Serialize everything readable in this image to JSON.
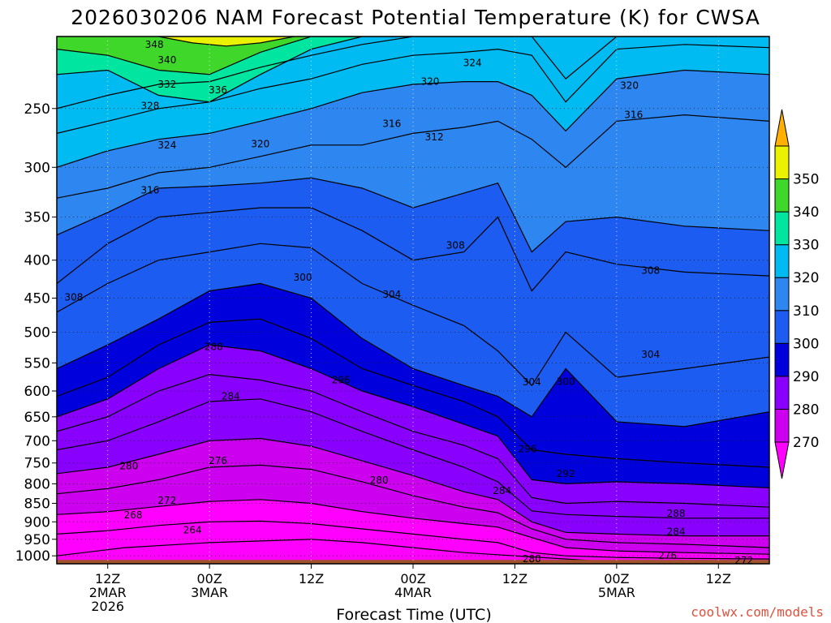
{
  "title": "2026030206 NAM Forecast Potential Temperature (K) for CWSA",
  "credit": "coolwx.com/models",
  "chart_data": {
    "type": "heatmap",
    "title": "2026030206 NAM Forecast Potential Temperature (K) for CWSA",
    "xlabel": "Forecast Time (UTC)",
    "ylabel": "",
    "x_range_hours": [
      6,
      90
    ],
    "y_range_hpa": [
      200,
      1025
    ],
    "y_scale": "log",
    "y_ticks": [
      250,
      300,
      350,
      400,
      450,
      500,
      550,
      600,
      650,
      700,
      750,
      800,
      850,
      900,
      950,
      1000
    ],
    "x_ticks": [
      {
        "hour": 12,
        "lines": [
          "12Z",
          "2MAR",
          "2026"
        ]
      },
      {
        "hour": 24,
        "lines": [
          "00Z",
          "3MAR"
        ]
      },
      {
        "hour": 36,
        "lines": [
          "12Z"
        ]
      },
      {
        "hour": 48,
        "lines": [
          "00Z",
          "4MAR"
        ]
      },
      {
        "hour": 60,
        "lines": [
          "12Z"
        ]
      },
      {
        "hour": 72,
        "lines": [
          "00Z",
          "5MAR"
        ]
      },
      {
        "hour": 84,
        "lines": [
          "12Z"
        ]
      }
    ],
    "grid": true,
    "colorbar": {
      "levels": [
        270,
        280,
        290,
        300,
        310,
        320,
        330,
        340,
        350
      ],
      "labels": [
        "270",
        "280",
        "290",
        "300",
        "310",
        "320",
        "330",
        "340",
        "350"
      ],
      "colors": [
        "#ff00ff",
        "#cc00ee",
        "#8a00ff",
        "#0000dd",
        "#1c5cf0",
        "#2e86f0",
        "#00baf2",
        "#00e5a0",
        "#3fd82a",
        "#eaf200",
        "#ffb000"
      ]
    },
    "contour_interval": 2,
    "series": [
      {
        "theta": 264,
        "hours": [
          6,
          14,
          24,
          30,
          36,
          42,
          48,
          54,
          60,
          66,
          72,
          80,
          90
        ],
        "pressure": [
          1000,
          975,
          960,
          955,
          950,
          960,
          975,
          990,
          1000,
          1010,
          1020,
          1020,
          1020
        ]
      },
      {
        "theta": 268,
        "hours": [
          6,
          12,
          18,
          24,
          30,
          36,
          42,
          48,
          54,
          58,
          62,
          66,
          72,
          80,
          90
        ],
        "pressure": [
          935,
          925,
          910,
          900,
          898,
          905,
          920,
          935,
          950,
          960,
          990,
          1000,
          1005,
          1008,
          1010
        ]
      },
      {
        "theta": 272,
        "hours": [
          6,
          12,
          18,
          24,
          30,
          36,
          42,
          48,
          54,
          58,
          62,
          66,
          72,
          80,
          90
        ],
        "pressure": [
          880,
          872,
          858,
          845,
          840,
          850,
          872,
          890,
          905,
          915,
          945,
          975,
          985,
          990,
          995
        ]
      },
      {
        "theta": 276,
        "hours": [
          6,
          12,
          18,
          24,
          30,
          36,
          42,
          48,
          54,
          58,
          62,
          66,
          72,
          80,
          90
        ],
        "pressure": [
          825,
          812,
          790,
          760,
          755,
          765,
          795,
          830,
          860,
          875,
          920,
          950,
          960,
          965,
          975
        ]
      },
      {
        "theta": 280,
        "hours": [
          6,
          12,
          18,
          24,
          30,
          36,
          42,
          48,
          54,
          58,
          62,
          66,
          72,
          80,
          90
        ],
        "pressure": [
          775,
          760,
          730,
          700,
          695,
          712,
          745,
          780,
          820,
          840,
          900,
          930,
          935,
          940,
          940
        ]
      },
      {
        "theta": 284,
        "hours": [
          6,
          12,
          18,
          24,
          30,
          36,
          42,
          48,
          54,
          58,
          62,
          66,
          72,
          80,
          90
        ],
        "pressure": [
          720,
          700,
          660,
          620,
          615,
          640,
          680,
          720,
          760,
          795,
          870,
          880,
          885,
          890,
          890
        ]
      },
      {
        "theta": 288,
        "hours": [
          6,
          12,
          18,
          24,
          30,
          36,
          42,
          48,
          54,
          58,
          62,
          66,
          72,
          80,
          90
        ],
        "pressure": [
          680,
          650,
          600,
          570,
          580,
          600,
          640,
          680,
          710,
          740,
          835,
          850,
          845,
          850,
          860
        ]
      },
      {
        "theta": 292,
        "hours": [
          6,
          12,
          18,
          24,
          30,
          36,
          42,
          48,
          54,
          58,
          62,
          66,
          72,
          80,
          90
        ],
        "pressure": [
          650,
          615,
          560,
          520,
          530,
          560,
          600,
          630,
          665,
          690,
          790,
          800,
          795,
          800,
          810
        ]
      },
      {
        "theta": 296,
        "hours": [
          6,
          12,
          18,
          24,
          30,
          36,
          42,
          48,
          54,
          58,
          62,
          66,
          72,
          80,
          90
        ],
        "pressure": [
          610,
          575,
          520,
          485,
          480,
          510,
          560,
          590,
          620,
          650,
          720,
          730,
          740,
          750,
          760
        ]
      },
      {
        "theta": 300,
        "hours": [
          6,
          12,
          18,
          24,
          30,
          36,
          42,
          48,
          54,
          58,
          62,
          66,
          72,
          80,
          90
        ],
        "pressure": [
          560,
          520,
          480,
          440,
          430,
          450,
          510,
          560,
          590,
          610,
          650,
          560,
          660,
          670,
          640
        ]
      },
      {
        "theta": 304,
        "hours": [
          6,
          12,
          18,
          24,
          30,
          36,
          42,
          48,
          54,
          58,
          62,
          66,
          72,
          80,
          90
        ],
        "pressure": [
          470,
          430,
          400,
          390,
          380,
          385,
          430,
          460,
          490,
          530,
          590,
          500,
          575,
          560,
          540
        ]
      },
      {
        "theta": 308,
        "hours": [
          6,
          12,
          18,
          24,
          30,
          36,
          42,
          48,
          54,
          58,
          62,
          66,
          72,
          80,
          90
        ],
        "pressure": [
          430,
          380,
          350,
          345,
          340,
          340,
          365,
          400,
          390,
          350,
          440,
          390,
          405,
          415,
          420
        ]
      },
      {
        "theta": 312,
        "hours": [
          6,
          12,
          18,
          24,
          30,
          36,
          42,
          48,
          54,
          58,
          62,
          66,
          72,
          80,
          90
        ],
        "pressure": [
          370,
          345,
          320,
          318,
          315,
          310,
          320,
          340,
          325,
          315,
          390,
          355,
          350,
          360,
          365
        ]
      },
      {
        "theta": 316,
        "hours": [
          6,
          12,
          18,
          24,
          30,
          36,
          42,
          48,
          54,
          58,
          62,
          66,
          72,
          80,
          90
        ],
        "pressure": [
          330,
          320,
          305,
          300,
          290,
          280,
          280,
          270,
          265,
          260,
          275,
          300,
          260,
          255,
          260
        ]
      },
      {
        "theta": 320,
        "hours": [
          6,
          12,
          18,
          24,
          30,
          36,
          42,
          48,
          54,
          58,
          62,
          66,
          72,
          80,
          90
        ],
        "pressure": [
          300,
          285,
          275,
          270,
          260,
          250,
          238,
          232,
          230,
          230,
          240,
          268,
          228,
          222,
          225
        ]
      },
      {
        "theta": 324,
        "hours": [
          6,
          12,
          18,
          24,
          30,
          36,
          42,
          48,
          54,
          58,
          62,
          66,
          72,
          80,
          90
        ],
        "pressure": [
          270,
          260,
          250,
          245,
          235,
          228,
          218,
          212,
          210,
          208,
          212,
          245,
          208,
          205,
          207
        ]
      },
      {
        "theta": 328,
        "hours": [
          6,
          12,
          18,
          24,
          30,
          36,
          42,
          48,
          54,
          58,
          62,
          66,
          72,
          80,
          90
        ],
        "pressure": [
          250,
          240,
          232,
          230,
          220,
          212,
          205,
          200,
          200,
          200,
          200,
          228,
          200,
          200,
          200
        ]
      },
      {
        "theta": 336,
        "hours": [
          6,
          12,
          18,
          24,
          30,
          36,
          42,
          48
        ],
        "pressure": [
          225,
          222,
          240,
          245,
          225,
          208,
          200,
          200
        ]
      },
      {
        "theta": 344,
        "hours": [
          6,
          12,
          18,
          24,
          30,
          36,
          42
        ],
        "pressure": [
          208,
          212,
          222,
          225,
          210,
          200,
          200
        ]
      },
      {
        "theta": 350,
        "hours": [
          18,
          22,
          26,
          30,
          34
        ],
        "pressure": [
          200,
          204,
          206,
          204,
          200
        ]
      }
    ],
    "contour_labels": [
      {
        "text": "348",
        "hour": 17.5,
        "p": 205
      },
      {
        "text": "340",
        "hour": 19,
        "p": 215
      },
      {
        "text": "332",
        "hour": 19,
        "p": 232
      },
      {
        "text": "336",
        "hour": 25,
        "p": 236
      },
      {
        "text": "328",
        "hour": 17,
        "p": 248
      },
      {
        "text": "324",
        "hour": 19,
        "p": 280
      },
      {
        "text": "320",
        "hour": 30,
        "p": 279
      },
      {
        "text": "316",
        "hour": 17,
        "p": 322
      },
      {
        "text": "324",
        "hour": 55,
        "p": 217
      },
      {
        "text": "320",
        "hour": 50,
        "p": 230
      },
      {
        "text": "320",
        "hour": 73.5,
        "p": 233
      },
      {
        "text": "316",
        "hour": 45.5,
        "p": 262
      },
      {
        "text": "312",
        "hour": 50.5,
        "p": 273
      },
      {
        "text": "316",
        "hour": 74,
        "p": 255
      },
      {
        "text": "308",
        "hour": 53,
        "p": 382
      },
      {
        "text": "308",
        "hour": 76,
        "p": 413
      },
      {
        "text": "300",
        "hour": 35,
        "p": 422
      },
      {
        "text": "304",
        "hour": 45.5,
        "p": 445
      },
      {
        "text": "308",
        "hour": 8,
        "p": 449
      },
      {
        "text": "304",
        "hour": 76,
        "p": 536
      },
      {
        "text": "304",
        "hour": 62,
        "p": 584
      },
      {
        "text": "300",
        "hour": 66,
        "p": 583
      },
      {
        "text": "288",
        "hour": 24.5,
        "p": 523
      },
      {
        "text": "284",
        "hour": 26.5,
        "p": 610
      },
      {
        "text": "296",
        "hour": 39.5,
        "p": 580
      },
      {
        "text": "280",
        "hour": 14.5,
        "p": 757
      },
      {
        "text": "276",
        "hour": 25,
        "p": 745
      },
      {
        "text": "280",
        "hour": 44,
        "p": 791
      },
      {
        "text": "284",
        "hour": 58.5,
        "p": 817
      },
      {
        "text": "296",
        "hour": 61.5,
        "p": 718
      },
      {
        "text": "292",
        "hour": 66,
        "p": 775
      },
      {
        "text": "272",
        "hour": 19,
        "p": 843
      },
      {
        "text": "268",
        "hour": 15,
        "p": 882
      },
      {
        "text": "264",
        "hour": 22,
        "p": 924
      },
      {
        "text": "288",
        "hour": 79,
        "p": 877
      },
      {
        "text": "284",
        "hour": 79,
        "p": 928
      },
      {
        "text": "280",
        "hour": 62,
        "p": 1010
      },
      {
        "text": "276",
        "hour": 78,
        "p": 1000
      },
      {
        "text": "272",
        "hour": 87,
        "p": 1015
      }
    ]
  }
}
